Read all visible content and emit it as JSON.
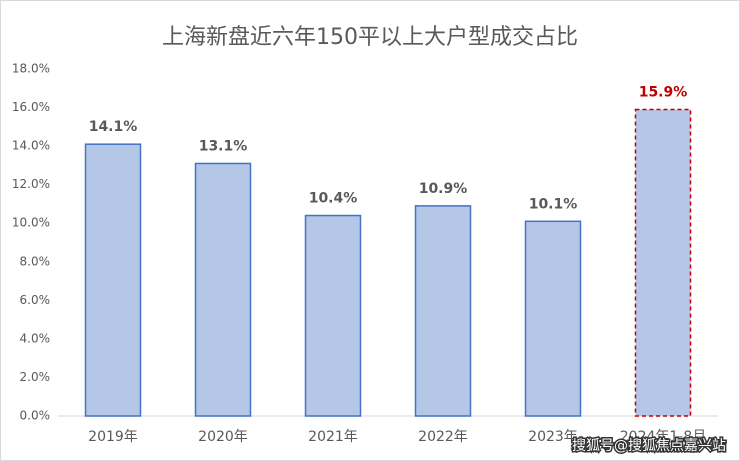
{
  "chart_data": {
    "type": "bar",
    "title": "上海新盘近六年150平以上大户型成交占比",
    "categories": [
      "2019年",
      "2020年",
      "2021年",
      "2022年",
      "2023年",
      "2024年1-8月"
    ],
    "values": [
      14.1,
      13.1,
      10.4,
      10.9,
      10.1,
      15.9
    ],
    "value_labels": [
      "14.1%",
      "13.1%",
      "10.4%",
      "10.9%",
      "10.1%",
      "15.9%"
    ],
    "color": "#b4c7e7",
    "edge_colors": [
      "#4472c4",
      "#4472c4",
      "#4472c4",
      "#4472c4",
      "#4472c4",
      "#c00000"
    ],
    "edge_dashed": [
      false,
      false,
      false,
      false,
      false,
      true
    ],
    "value_label_colors": [
      "#595959",
      "#595959",
      "#595959",
      "#595959",
      "#595959",
      "#c00000"
    ],
    "ylim": [
      0,
      18
    ],
    "yticks": [
      {
        "value": 0,
        "label": "0.0%"
      },
      {
        "value": 2,
        "label": "2.0%"
      },
      {
        "value": 4,
        "label": "4.0%"
      },
      {
        "value": 6,
        "label": "6.0%"
      },
      {
        "value": 8,
        "label": "8.0%"
      },
      {
        "value": 10,
        "label": "10.0%"
      },
      {
        "value": 12,
        "label": "12.0%"
      },
      {
        "value": 14,
        "label": "14.0%"
      },
      {
        "value": 16,
        "label": "16.0%"
      },
      {
        "value": 18,
        "label": "18.0%"
      }
    ],
    "grid": false,
    "watermark": "搜狐号@搜狐焦点嘉兴站"
  }
}
